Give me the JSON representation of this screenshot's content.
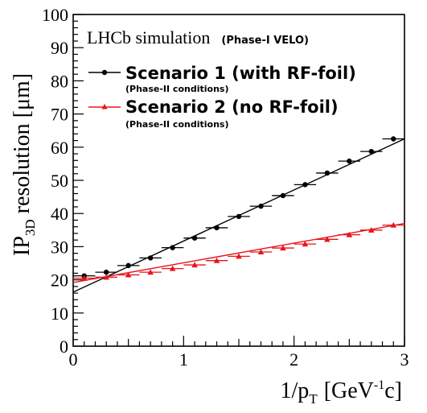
{
  "chart_data": {
    "type": "scatter",
    "xlabel": "1/p",
    "xlabel_sub": "T",
    "xlabel_unit": "[GeV",
    "xlabel_sup": "-1",
    "xlabel_unit_end": "c]",
    "ylabel_main": "IP",
    "ylabel_sub": "3D",
    "ylabel_rest": " resolution [μm]",
    "xlim": [
      0,
      3
    ],
    "ylim": [
      0,
      100
    ],
    "x_ticks": [
      "0",
      "1",
      "2",
      "3"
    ],
    "y_ticks": [
      "0",
      "10",
      "20",
      "30",
      "40",
      "50",
      "60",
      "70",
      "80",
      "90",
      "100"
    ],
    "annotation_main": "LHCb simulation",
    "annotation_sub": "(Phase-I VELO)",
    "series": [
      {
        "name": "Scenario 1 (with RF-foil)",
        "subtitle": "(Phase-II conditions)",
        "color": "#000000",
        "marker": "circle",
        "x": [
          0.1,
          0.3,
          0.5,
          0.7,
          0.9,
          1.1,
          1.3,
          1.5,
          1.7,
          1.9,
          2.1,
          2.3,
          2.5,
          2.7,
          2.9
        ],
        "y": [
          21.2,
          22.3,
          24.3,
          26.6,
          29.7,
          32.6,
          35.7,
          39.1,
          42.2,
          45.4,
          48.7,
          52.2,
          55.8,
          58.7,
          62.5
        ],
        "fit": {
          "x": [
            0,
            3
          ],
          "y": [
            16.3,
            62.5
          ]
        }
      },
      {
        "name": "Scenario 2 (no RF-foil)",
        "subtitle": "(Phase-II conditions)",
        "color": "#e8141c",
        "marker": "triangle",
        "x": [
          0.1,
          0.3,
          0.5,
          0.7,
          0.9,
          1.1,
          1.3,
          1.5,
          1.7,
          1.9,
          2.1,
          2.3,
          2.5,
          2.7,
          2.9
        ],
        "y": [
          20.5,
          20.8,
          21.5,
          22.3,
          23.4,
          24.5,
          25.8,
          27.1,
          28.4,
          29.6,
          30.8,
          32.2,
          33.6,
          35.0,
          36.5
        ],
        "fit": {
          "x": [
            0,
            3
          ],
          "y": [
            19.2,
            37.0
          ]
        }
      }
    ]
  }
}
